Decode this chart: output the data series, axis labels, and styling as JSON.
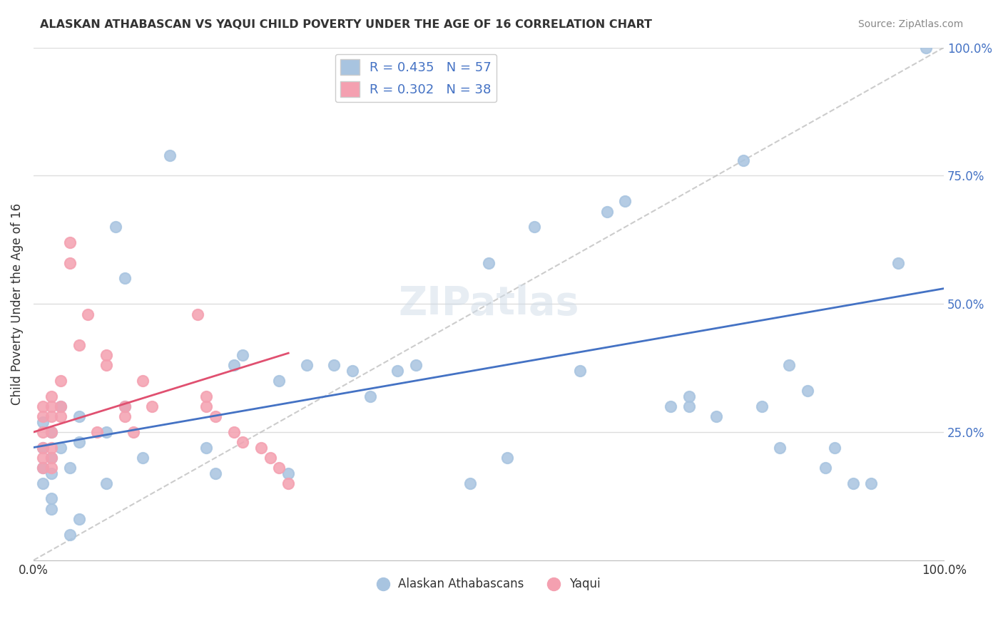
{
  "title": "ALASKAN ATHABASCAN VS YAQUI CHILD POVERTY UNDER THE AGE OF 16 CORRELATION CHART",
  "source": "Source: ZipAtlas.com",
  "xlabel": "",
  "ylabel": "Child Poverty Under the Age of 16",
  "xlim": [
    0,
    1.0
  ],
  "ylim": [
    0,
    1.0
  ],
  "ytick_positions": [
    0.0,
    0.25,
    0.5,
    0.75,
    1.0
  ],
  "ytick_labels": [
    "",
    "25.0%",
    "50.0%",
    "75.0%",
    "100.0%"
  ],
  "legend1_label": "R = 0.435   N = 57",
  "legend2_label": "R = 0.302   N = 38",
  "legend_bottom_label1": "Alaskan Athabascans",
  "legend_bottom_label2": "Yaqui",
  "athabascan_color": "#a8c4e0",
  "yaqui_color": "#f4a0b0",
  "trend_athabascan_color": "#4472c4",
  "trend_yaqui_color": "#e05070",
  "diagonal_color": "#c0c0c0",
  "background_color": "#ffffff",
  "grid_color": "#dddddd",
  "athabascan_x": [
    0.01,
    0.01,
    0.01,
    0.01,
    0.02,
    0.02,
    0.02,
    0.02,
    0.02,
    0.03,
    0.03,
    0.04,
    0.04,
    0.05,
    0.05,
    0.05,
    0.08,
    0.08,
    0.09,
    0.1,
    0.1,
    0.12,
    0.15,
    0.19,
    0.2,
    0.22,
    0.23,
    0.27,
    0.28,
    0.3,
    0.33,
    0.35,
    0.37,
    0.4,
    0.42,
    0.48,
    0.5,
    0.52,
    0.55,
    0.6,
    0.63,
    0.65,
    0.7,
    0.72,
    0.72,
    0.75,
    0.78,
    0.8,
    0.82,
    0.83,
    0.85,
    0.87,
    0.88,
    0.9,
    0.92,
    0.95,
    0.98
  ],
  "athabascan_y": [
    0.22,
    0.27,
    0.18,
    0.15,
    0.25,
    0.2,
    0.17,
    0.12,
    0.1,
    0.3,
    0.22,
    0.18,
    0.05,
    0.28,
    0.23,
    0.08,
    0.25,
    0.15,
    0.65,
    0.55,
    0.3,
    0.2,
    0.79,
    0.22,
    0.17,
    0.38,
    0.4,
    0.35,
    0.17,
    0.38,
    0.38,
    0.37,
    0.32,
    0.37,
    0.38,
    0.15,
    0.58,
    0.2,
    0.65,
    0.37,
    0.68,
    0.7,
    0.3,
    0.32,
    0.3,
    0.28,
    0.78,
    0.3,
    0.22,
    0.38,
    0.33,
    0.18,
    0.22,
    0.15,
    0.15,
    0.58,
    1.0
  ],
  "yaqui_x": [
    0.01,
    0.01,
    0.01,
    0.01,
    0.01,
    0.01,
    0.02,
    0.02,
    0.02,
    0.02,
    0.02,
    0.02,
    0.02,
    0.03,
    0.03,
    0.03,
    0.04,
    0.04,
    0.05,
    0.06,
    0.07,
    0.08,
    0.08,
    0.1,
    0.1,
    0.11,
    0.12,
    0.13,
    0.18,
    0.19,
    0.19,
    0.2,
    0.22,
    0.23,
    0.25,
    0.26,
    0.27,
    0.28
  ],
  "yaqui_y": [
    0.25,
    0.28,
    0.3,
    0.22,
    0.2,
    0.18,
    0.32,
    0.3,
    0.28,
    0.25,
    0.22,
    0.2,
    0.18,
    0.35,
    0.3,
    0.28,
    0.62,
    0.58,
    0.42,
    0.48,
    0.25,
    0.4,
    0.38,
    0.3,
    0.28,
    0.25,
    0.35,
    0.3,
    0.48,
    0.32,
    0.3,
    0.28,
    0.25,
    0.23,
    0.22,
    0.2,
    0.18,
    0.15
  ],
  "athabascan_trend_slope": 0.31,
  "athabascan_trend_intercept": 0.22,
  "yaqui_trend_slope": 0.55,
  "yaqui_trend_intercept": 0.25,
  "figsize": [
    14.06,
    8.92
  ],
  "dpi": 100
}
